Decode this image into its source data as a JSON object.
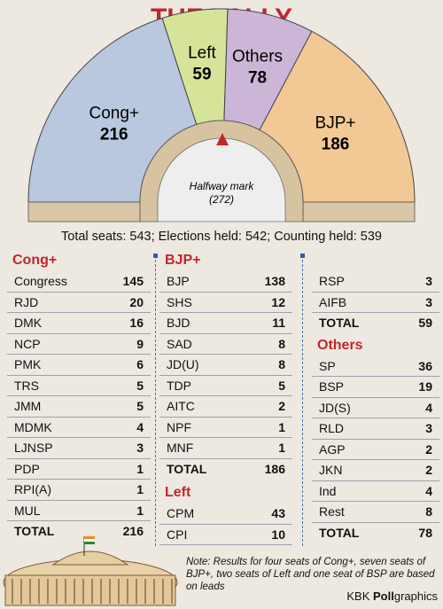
{
  "chart_data": {
    "type": "pie",
    "title": "THE TALLY",
    "slices": [
      {
        "label": "Cong+",
        "value": 216,
        "color": "#b9c7df"
      },
      {
        "label": "Left",
        "value": 59,
        "color": "#d6e49a"
      },
      {
        "label": "Others",
        "value": 78,
        "color": "#ccb6d8"
      },
      {
        "label": "BJP+",
        "value": 186,
        "color": "#f2c994"
      }
    ],
    "annotation": {
      "label": "Halfway mark",
      "value": "(272)"
    }
  },
  "meta_line": "Total seats: 543; Elections held: 542; Counting held: 539",
  "tables": {
    "cong": {
      "heading": "Cong+",
      "rows": [
        {
          "name": "Congress",
          "value": "145"
        },
        {
          "name": "RJD",
          "value": "20"
        },
        {
          "name": "DMK",
          "value": "16"
        },
        {
          "name": "NCP",
          "value": "9"
        },
        {
          "name": "PMK",
          "value": "6"
        },
        {
          "name": "TRS",
          "value": "5"
        },
        {
          "name": "JMM",
          "value": "5"
        },
        {
          "name": "MDMK",
          "value": "4"
        },
        {
          "name": "LJNSP",
          "value": "3"
        },
        {
          "name": "PDP",
          "value": "1"
        },
        {
          "name": "RPI(A)",
          "value": "1"
        },
        {
          "name": "MUL",
          "value": "1"
        }
      ],
      "total": {
        "name": "TOTAL",
        "value": "216"
      }
    },
    "bjp": {
      "heading": "BJP+",
      "rows": [
        {
          "name": "BJP",
          "value": "138"
        },
        {
          "name": "SHS",
          "value": "12"
        },
        {
          "name": "BJD",
          "value": "11"
        },
        {
          "name": "SAD",
          "value": "8"
        },
        {
          "name": "JD(U)",
          "value": "8"
        },
        {
          "name": "TDP",
          "value": "5"
        },
        {
          "name": "AITC",
          "value": "2"
        },
        {
          "name": "NPF",
          "value": "1"
        },
        {
          "name": "MNF",
          "value": "1"
        }
      ],
      "total": {
        "name": "TOTAL",
        "value": "186"
      }
    },
    "left": {
      "heading": "Left",
      "rows": [
        {
          "name": "CPM",
          "value": "43"
        },
        {
          "name": "CPI",
          "value": "10"
        }
      ],
      "cont_rows": [
        {
          "name": "RSP",
          "value": "3"
        },
        {
          "name": "AIFB",
          "value": "3"
        }
      ],
      "total": {
        "name": "TOTAL",
        "value": "59"
      }
    },
    "others": {
      "heading": "Others",
      "rows": [
        {
          "name": "SP",
          "value": "36"
        },
        {
          "name": "BSP",
          "value": "19"
        },
        {
          "name": "JD(S)",
          "value": "4"
        },
        {
          "name": "RLD",
          "value": "3"
        },
        {
          "name": "AGP",
          "value": "2"
        },
        {
          "name": "JKN",
          "value": "2"
        },
        {
          "name": "Ind",
          "value": "4"
        },
        {
          "name": "Rest",
          "value": "8"
        }
      ],
      "total": {
        "name": "TOTAL",
        "value": "78"
      }
    }
  },
  "note": "Note: Results for four seats of Cong+, seven seats of BJP+, two seats of Left and one seat of BSP are based on leads",
  "credit": {
    "prefix": "KBK ",
    "bold": "Poll",
    "suffix": "graphics"
  }
}
